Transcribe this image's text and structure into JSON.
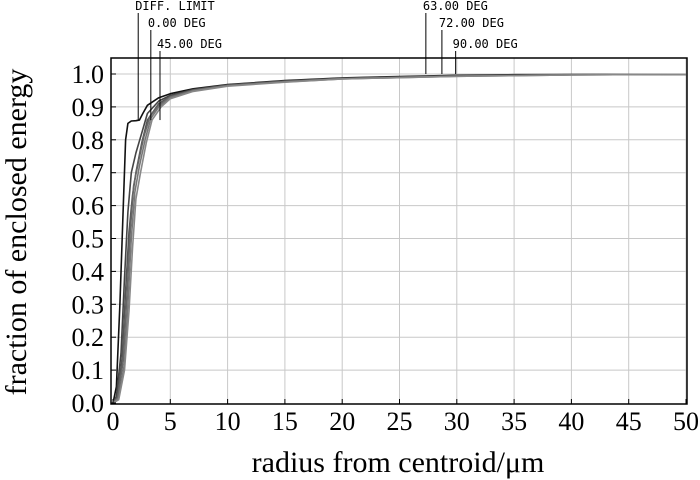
{
  "chart_data": {
    "type": "line",
    "xlabel": "radius from centroid/μm",
    "ylabel": "fraction of enclosed energy",
    "xlim": [
      0,
      50
    ],
    "ylim": [
      0,
      1.05
    ],
    "x_ticks": [
      0,
      5,
      10,
      15,
      20,
      25,
      30,
      35,
      40,
      45,
      50
    ],
    "y_ticks": [
      0.0,
      0.1,
      0.2,
      0.3,
      0.4,
      0.5,
      0.6,
      0.7,
      0.8,
      0.9,
      1.0
    ],
    "x_tick_labels": [
      "0",
      "5",
      "10",
      "15",
      "20",
      "25",
      "30",
      "35",
      "40",
      "45",
      "50"
    ],
    "y_tick_labels": [
      "0.0",
      "0.1",
      "0.2",
      "0.3",
      "0.4",
      "0.5",
      "0.6",
      "0.7",
      "0.8",
      "0.9",
      "1.0"
    ],
    "grid": true,
    "series": [
      {
        "name": "DIFF. LIMIT",
        "color": "#111111",
        "points": [
          [
            0,
            0
          ],
          [
            0.3,
            0.05
          ],
          [
            0.6,
            0.3
          ],
          [
            0.9,
            0.6
          ],
          [
            1.1,
            0.8
          ],
          [
            1.3,
            0.85
          ],
          [
            1.6,
            0.857
          ],
          [
            2.0,
            0.858
          ],
          [
            2.3,
            0.86
          ],
          [
            2.6,
            0.88
          ],
          [
            3.0,
            0.905
          ],
          [
            4.0,
            0.928
          ],
          [
            5.0,
            0.94
          ],
          [
            7.0,
            0.955
          ],
          [
            10.0,
            0.968
          ],
          [
            15.0,
            0.98
          ],
          [
            20.0,
            0.988
          ],
          [
            27.0,
            0.994
          ],
          [
            30.0,
            0.996
          ],
          [
            35.0,
            0.998
          ],
          [
            50.0,
            0.999
          ]
        ]
      },
      {
        "name": "0.00 DEG",
        "color": "#444444",
        "points": [
          [
            0,
            0
          ],
          [
            0.3,
            0.02
          ],
          [
            0.7,
            0.15
          ],
          [
            1.0,
            0.38
          ],
          [
            1.3,
            0.58
          ],
          [
            1.6,
            0.7
          ],
          [
            2.0,
            0.76
          ],
          [
            2.5,
            0.82
          ],
          [
            3.0,
            0.88
          ],
          [
            4.0,
            0.918
          ],
          [
            5.0,
            0.935
          ],
          [
            7.0,
            0.953
          ],
          [
            10.0,
            0.967
          ],
          [
            15.0,
            0.979
          ],
          [
            20.0,
            0.987
          ],
          [
            30.0,
            0.995
          ],
          [
            40.0,
            0.998
          ],
          [
            50.0,
            0.999
          ]
        ]
      },
      {
        "name": "45.00 DEG",
        "color": "#555555",
        "points": [
          [
            0,
            0
          ],
          [
            0.4,
            0.02
          ],
          [
            0.8,
            0.14
          ],
          [
            1.1,
            0.34
          ],
          [
            1.4,
            0.52
          ],
          [
            1.7,
            0.63
          ],
          [
            2.0,
            0.7
          ],
          [
            2.5,
            0.79
          ],
          [
            3.0,
            0.86
          ],
          [
            4.0,
            0.91
          ],
          [
            5.0,
            0.932
          ],
          [
            7.0,
            0.951
          ],
          [
            10.0,
            0.966
          ],
          [
            15.0,
            0.978
          ],
          [
            20.0,
            0.986
          ],
          [
            30.0,
            0.994
          ],
          [
            40.0,
            0.998
          ],
          [
            50.0,
            0.999
          ]
        ]
      },
      {
        "name": "63.00 DEG",
        "color": "#666666",
        "points": [
          [
            0,
            0
          ],
          [
            0.4,
            0.015
          ],
          [
            0.9,
            0.13
          ],
          [
            1.2,
            0.32
          ],
          [
            1.5,
            0.52
          ],
          [
            1.8,
            0.66
          ],
          [
            2.2,
            0.73
          ],
          [
            2.7,
            0.81
          ],
          [
            3.2,
            0.87
          ],
          [
            4.0,
            0.905
          ],
          [
            5.0,
            0.93
          ],
          [
            7.0,
            0.95
          ],
          [
            10.0,
            0.965
          ],
          [
            15.0,
            0.977
          ],
          [
            20.0,
            0.986
          ],
          [
            30.0,
            0.994
          ],
          [
            40.0,
            0.998
          ],
          [
            50.0,
            0.999
          ]
        ]
      },
      {
        "name": "72.00 DEG",
        "color": "#777777",
        "points": [
          [
            0,
            0
          ],
          [
            0.5,
            0.015
          ],
          [
            1.0,
            0.12
          ],
          [
            1.3,
            0.3
          ],
          [
            1.6,
            0.5
          ],
          [
            1.9,
            0.64
          ],
          [
            2.3,
            0.72
          ],
          [
            2.8,
            0.8
          ],
          [
            3.3,
            0.865
          ],
          [
            4.0,
            0.9
          ],
          [
            5.0,
            0.928
          ],
          [
            7.0,
            0.949
          ],
          [
            10.0,
            0.964
          ],
          [
            15.0,
            0.976
          ],
          [
            20.0,
            0.985
          ],
          [
            30.0,
            0.993
          ],
          [
            40.0,
            0.997
          ],
          [
            50.0,
            0.999
          ]
        ]
      },
      {
        "name": "90.00 DEG",
        "color": "#888888",
        "points": [
          [
            0,
            0
          ],
          [
            0.5,
            0.01
          ],
          [
            1.0,
            0.1
          ],
          [
            1.4,
            0.28
          ],
          [
            1.7,
            0.47
          ],
          [
            2.0,
            0.62
          ],
          [
            2.4,
            0.7
          ],
          [
            2.9,
            0.79
          ],
          [
            3.4,
            0.86
          ],
          [
            4.2,
            0.9
          ],
          [
            5.0,
            0.925
          ],
          [
            7.0,
            0.947
          ],
          [
            10.0,
            0.963
          ],
          [
            15.0,
            0.975
          ],
          [
            20.0,
            0.985
          ],
          [
            30.0,
            0.993
          ],
          [
            40.0,
            0.997
          ],
          [
            50.0,
            0.999
          ]
        ]
      }
    ],
    "annotations": [
      {
        "text": "DIFF. LIMIT",
        "x": 2.2
      },
      {
        "text": "0.00 DEG",
        "x": 3.3
      },
      {
        "text": "45.00 DEG",
        "x": 4.1
      },
      {
        "text": "63.00 DEG",
        "x": 27.3
      },
      {
        "text": "72.00 DEG",
        "x": 28.7
      },
      {
        "text": "90.00 DEG",
        "x": 29.9
      }
    ]
  }
}
